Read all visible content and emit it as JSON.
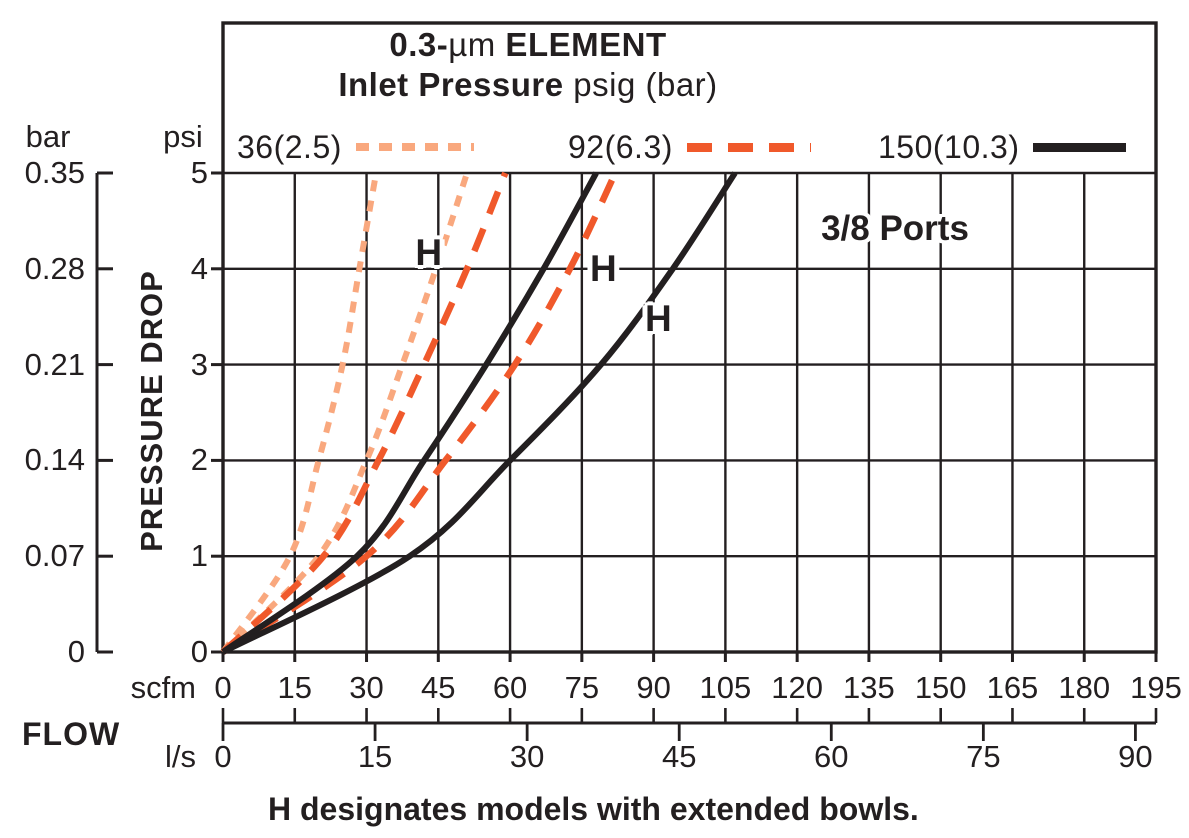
{
  "title": {
    "l1_bold_a": "0.3-",
    "l1_mu": "µm",
    "l1_bold_b": " ELEMENT",
    "l2_bold": "Inlet Pressure",
    "l2_rest": " psig (bar)"
  },
  "legend": {
    "items": [
      {
        "label": "36(2.5)",
        "style": "dotted",
        "color": "#F9A87E"
      },
      {
        "label": "92(6.3)",
        "style": "dashed",
        "color": "#F0592B"
      },
      {
        "label": "150(10.3)",
        "style": "solid",
        "color": "#231F20"
      }
    ]
  },
  "y_axis": {
    "bar_header": "bar",
    "psi_header": "psi",
    "bar_ticks": [
      "0.35",
      "0.28",
      "0.21",
      "0.14",
      "0.07",
      "0"
    ],
    "psi_ticks": [
      "5",
      "4",
      "3",
      "2",
      "1",
      "0"
    ],
    "title": "PRESSURE DROP"
  },
  "x_axis": {
    "scfm_label": "scfm",
    "scfm_ticks": [
      "0",
      "15",
      "30",
      "45",
      "60",
      "75",
      "90",
      "105",
      "120",
      "135",
      "150",
      "165",
      "180",
      "195"
    ],
    "ls_label": "l/s",
    "ls_ticks": [
      "0",
      "15",
      "30",
      "45",
      "60",
      "75",
      "90"
    ],
    "flow_label": "FLOW"
  },
  "annotations": {
    "ports": "3/8 Ports",
    "h_curve_labels": [
      "H",
      "H",
      "H"
    ],
    "caption": "H designates models with extended bowls."
  },
  "chart_data": {
    "type": "line",
    "title": "0.3-µm ELEMENT — Inlet Pressure psig (bar)",
    "xlabel": "FLOW scfm (l/s)",
    "ylabel": "PRESSURE DROP psi (bar)",
    "x_range_scfm": [
      0,
      195
    ],
    "x_range_ls": [
      0,
      92
    ],
    "y_range_psi": [
      0,
      5
    ],
    "y_range_bar": [
      0,
      0.35
    ],
    "grid": "on",
    "legend_position": "top",
    "units_note": "ls scale: 1 l/s = 2.119 scfm; bar scale 0.07 bar per 1 psi",
    "series": [
      {
        "name": "36(2.5) psig (bar)",
        "variant": "standard",
        "line": "dotted",
        "color": "#F9A87E",
        "points_scfm_psi": [
          [
            0,
            0
          ],
          [
            14,
            1
          ],
          [
            20,
            2
          ],
          [
            25,
            3
          ],
          [
            28.5,
            4
          ],
          [
            32,
            5
          ]
        ]
      },
      {
        "name": "36(2.5) psig (bar)",
        "variant": "H extended bowl",
        "line": "dotted",
        "color": "#F9A87E",
        "points_scfm_psi": [
          [
            0,
            0
          ],
          [
            20,
            1
          ],
          [
            30,
            2
          ],
          [
            37.5,
            3
          ],
          [
            44.5,
            4
          ],
          [
            51,
            5
          ]
        ]
      },
      {
        "name": "92(6.3) psig (bar)",
        "variant": "standard",
        "line": "dashed",
        "color": "#F0592B",
        "points_scfm_psi": [
          [
            0,
            0
          ],
          [
            21,
            1
          ],
          [
            32.5,
            2
          ],
          [
            42,
            3
          ],
          [
            51,
            4
          ],
          [
            59,
            5
          ]
        ]
      },
      {
        "name": "92(6.3) psig (bar)",
        "variant": "H extended bowl",
        "line": "dashed",
        "color": "#F0592B",
        "points_scfm_psi": [
          [
            0,
            0
          ],
          [
            30,
            1
          ],
          [
            46.5,
            2
          ],
          [
            61,
            3
          ],
          [
            72.5,
            4
          ],
          [
            82,
            5
          ]
        ]
      },
      {
        "name": "150(10.3) psig (bar)",
        "variant": "standard",
        "line": "solid",
        "color": "#231F20",
        "points_scfm_psi": [
          [
            0,
            0
          ],
          [
            28,
            1
          ],
          [
            42,
            2
          ],
          [
            55,
            3
          ],
          [
            67,
            4
          ],
          [
            78,
            5
          ]
        ]
      },
      {
        "name": "150(10.3) psig (bar)",
        "variant": "H extended bowl",
        "line": "solid",
        "color": "#231F20",
        "points_scfm_psi": [
          [
            0,
            0
          ],
          [
            39,
            1
          ],
          [
            60,
            2
          ],
          [
            79,
            3
          ],
          [
            94,
            4
          ],
          [
            107,
            5
          ]
        ]
      }
    ],
    "h_label_points_scfm_psi": [
      [
        43,
        4.17
      ],
      [
        79.5,
        4.0
      ],
      [
        91,
        3.48
      ]
    ]
  }
}
